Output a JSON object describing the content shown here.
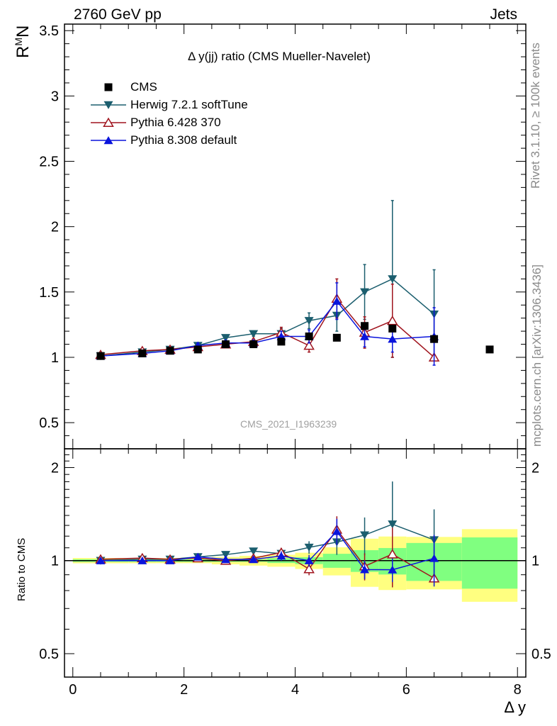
{
  "header": {
    "left": "2760 GeV pp",
    "right": "Jets"
  },
  "title": "Δ y(jj) ratio (CMS Mueller-Navelet)",
  "watermark": "CMS_2021_I1963239",
  "side_labels": {
    "rivet": "Rivet 3.1.10, ≥ 100k events",
    "mcplots": "mcplots.cern.ch [arXiv:1306.3436]"
  },
  "chart_data": {
    "type": "scatter",
    "xlabel": "Δ y",
    "ylabel": "R",
    "ylabel_sup": "M",
    "ylabel_sub": "N",
    "ratio_ylabel": "Ratio to CMS",
    "xlim": [
      -0.15,
      8.15
    ],
    "xticks": [
      "0",
      "2",
      "4",
      "6",
      "8"
    ],
    "main": {
      "ylim": [
        0.3,
        3.55
      ],
      "yticks": [
        "0.5",
        "1",
        "1.5",
        "2",
        "2.5",
        "3",
        "3.5"
      ]
    },
    "ratio": {
      "ylim": [
        0.42,
        2.3
      ],
      "yticks": [
        "0.5",
        "1",
        "2"
      ],
      "log_scale": true
    },
    "data": {
      "name": "CMS",
      "x": [
        0.5,
        1.25,
        1.75,
        2.25,
        2.75,
        3.25,
        3.75,
        4.25,
        4.75,
        5.25,
        5.75,
        6.5,
        7.5
      ],
      "y": [
        1.01,
        1.03,
        1.05,
        1.06,
        1.1,
        1.1,
        1.12,
        1.16,
        1.15,
        1.24,
        1.22,
        1.14,
        1.06
      ],
      "xerr": [
        0.5,
        0.25,
        0.25,
        0.25,
        0.25,
        0.25,
        0.25,
        0.25,
        0.25,
        0.25,
        0.25,
        0.5,
        0.5
      ],
      "err_inner": [
        0.01,
        0.01,
        0.01,
        0.01,
        0.01,
        0.01,
        0.02,
        0.03,
        0.06,
        0.1,
        0.12,
        0.16,
        0.2
      ],
      "err_outer": [
        0.02,
        0.02,
        0.02,
        0.02,
        0.03,
        0.04,
        0.05,
        0.07,
        0.12,
        0.22,
        0.24,
        0.22,
        0.28
      ]
    },
    "series": [
      {
        "name": "Herwig 7.2.1 softTune",
        "color": "#1b5e6e",
        "marker": "triangle-down",
        "x": [
          0.5,
          1.25,
          1.75,
          2.25,
          2.75,
          3.25,
          3.75,
          4.25,
          4.75,
          5.25,
          5.75,
          6.5
        ],
        "y": [
          1.01,
          1.04,
          1.06,
          1.09,
          1.15,
          1.18,
          1.18,
          1.28,
          1.32,
          1.5,
          1.6,
          1.33
        ],
        "err": [
          0.01,
          0.01,
          0.02,
          0.02,
          0.02,
          0.02,
          0.04,
          0.06,
          0.12,
          0.21,
          0.6,
          0.34
        ]
      },
      {
        "name": "Pythia 6.428 370",
        "color": "#a0141e",
        "marker": "triangle-up-open",
        "x": [
          0.5,
          1.25,
          1.75,
          2.25,
          2.75,
          3.25,
          3.75,
          4.25,
          4.75,
          5.25,
          5.75,
          6.5
        ],
        "y": [
          1.02,
          1.05,
          1.06,
          1.08,
          1.1,
          1.12,
          1.19,
          1.09,
          1.45,
          1.19,
          1.28,
          1.0
        ],
        "err": [
          0.01,
          0.01,
          0.01,
          0.02,
          0.02,
          0.02,
          0.04,
          0.05,
          0.15,
          0.12,
          0.28,
          0.0
        ]
      },
      {
        "name": "Pythia 8.308 default",
        "color": "#0a14dc",
        "marker": "triangle-up",
        "x": [
          0.5,
          1.25,
          1.75,
          2.25,
          2.75,
          3.25,
          3.75,
          4.25,
          4.75,
          5.25,
          5.75,
          6.5
        ],
        "y": [
          1.01,
          1.03,
          1.05,
          1.09,
          1.11,
          1.11,
          1.16,
          1.16,
          1.43,
          1.16,
          1.14,
          1.16
        ],
        "err": [
          0.01,
          0.01,
          0.01,
          0.02,
          0.02,
          0.02,
          0.04,
          0.05,
          0.14,
          0.08,
          0.1,
          0.22
        ]
      }
    ]
  }
}
